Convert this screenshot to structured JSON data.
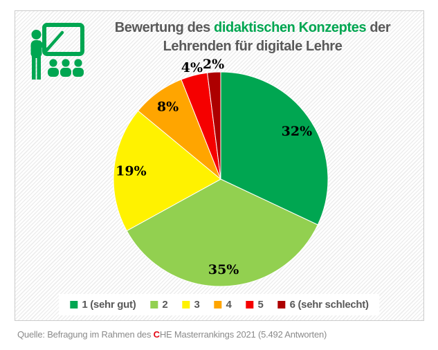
{
  "title": {
    "part1": "Bewertung des ",
    "part2": "didaktischen Konzeptes",
    "part3": " der",
    "line2": "Lehrenden für digitale Lehre"
  },
  "icon": {
    "name": "teacher-presentation-icon",
    "color": "#00A651"
  },
  "chart_data": {
    "type": "pie",
    "title": "Bewertung des didaktischen Konzeptes der Lehrenden für digitale Lehre",
    "start_angle_deg": 0,
    "direction": "clockwise",
    "legend_position": "bottom",
    "slices": [
      {
        "label": "1 (sehr gut)",
        "value": 32,
        "display": "32%",
        "color": "#00A651"
      },
      {
        "label": "2",
        "value": 35,
        "display": "35%",
        "color": "#92D050"
      },
      {
        "label": "3",
        "value": 19,
        "display": "19%",
        "color": "#FFF200"
      },
      {
        "label": "4",
        "value": 8,
        "display": "8%",
        "color": "#FFA500"
      },
      {
        "label": "5",
        "value": 4,
        "display": "4%",
        "color": "#F50000"
      },
      {
        "label": "6 (sehr schlecht)",
        "value": 2,
        "display": "2%",
        "color": "#AD0000"
      }
    ]
  },
  "source": {
    "part1": "Quelle: Befragung im Rahmen des ",
    "highlight": "C",
    "part2": "HE Masterrankings 2021 (5.492 Antworten)"
  },
  "colors": {
    "title_gray": "#595959",
    "accent_green": "#00A651",
    "source_gray": "#8a8a8a",
    "source_red": "#e30613",
    "panel_border": "#cbcbcb"
  }
}
